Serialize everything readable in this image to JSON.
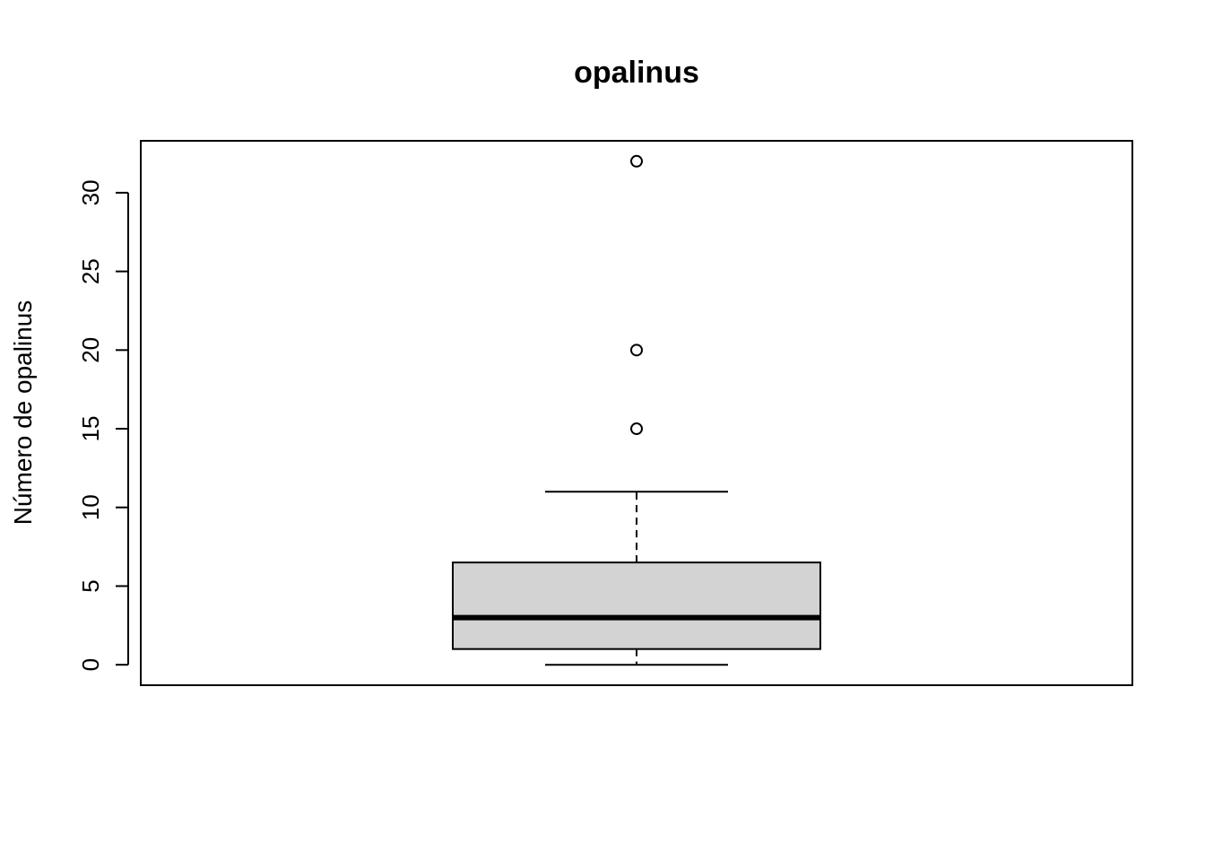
{
  "chart_data": {
    "type": "boxplot",
    "title": "opalinus",
    "xlabel": "",
    "ylabel": "Número de opalinus",
    "yticks": [
      0,
      5,
      10,
      15,
      20,
      25,
      30
    ],
    "ytick_labels": [
      "0",
      "5",
      "10",
      "15",
      "20",
      "25",
      "30"
    ],
    "ylim": [
      -1.3,
      33.3
    ],
    "grid": false,
    "box": {
      "whisker_low": 0,
      "q1": 1,
      "median": 3,
      "q3": 6.5,
      "whisker_high": 11,
      "outliers": [
        15,
        20,
        32
      ]
    },
    "colors": {
      "box_fill": "#d3d3d3",
      "stroke": "#000000"
    }
  }
}
